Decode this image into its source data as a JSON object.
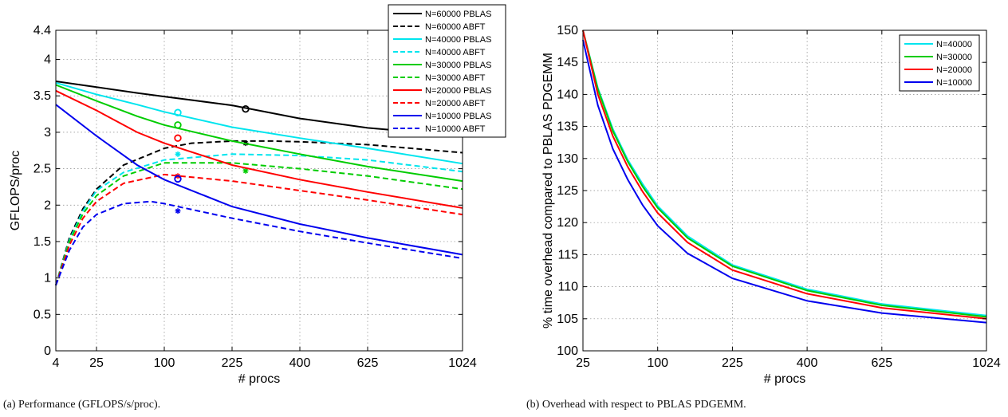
{
  "captions": {
    "a": "(a) Performance (GFLOPS/s/proc).",
    "b": "(b) Overhead with respect to PBLAS PDGEMM."
  },
  "chart_data": [
    {
      "type": "line",
      "id": "a",
      "xlabel": "# procs",
      "ylabel": "GFLOPS/proc",
      "x_scale": "sqrt",
      "xlim": [
        4,
        1024
      ],
      "ylim": [
        0,
        4.4
      ],
      "xticks": [
        4,
        25,
        100,
        225,
        400,
        625,
        1024
      ],
      "yticks": [
        0,
        0.5,
        1,
        1.5,
        2,
        2.5,
        3,
        3.5,
        4,
        4.4
      ],
      "ytick_labels": [
        "0",
        "0.5",
        "1",
        "1.5",
        "2",
        "2.5",
        "3",
        "3.5",
        "4",
        "4.4"
      ],
      "grid": true,
      "legend_position": "top-right",
      "series": [
        {
          "name": "N=60000 PBLAS",
          "color": "#000000",
          "dash": false,
          "points": [
            [
              4,
              3.7
            ],
            [
              25,
              3.62
            ],
            [
              64,
              3.54
            ],
            [
              100,
              3.49
            ],
            [
              225,
              3.37
            ],
            [
              400,
              3.19
            ],
            [
              625,
              3.06
            ],
            [
              1024,
              2.95
            ]
          ],
          "marker": {
            "type": "circle",
            "x": 256,
            "y": 3.32
          }
        },
        {
          "name": "N=60000 ABFT",
          "color": "#000000",
          "dash": true,
          "points": [
            [
              4,
              0.9
            ],
            [
              9,
              1.55
            ],
            [
              16,
              1.95
            ],
            [
              25,
              2.22
            ],
            [
              49,
              2.55
            ],
            [
              100,
              2.78
            ],
            [
              144,
              2.85
            ],
            [
              225,
              2.88
            ],
            [
              324,
              2.88
            ],
            [
              400,
              2.87
            ],
            [
              625,
              2.83
            ],
            [
              1024,
              2.72
            ]
          ],
          "marker": {
            "type": "star",
            "x": 256,
            "y": 2.85
          }
        },
        {
          "name": "N=40000 PBLAS",
          "color": "#00e5ee",
          "dash": false,
          "points": [
            [
              4,
              3.68
            ],
            [
              25,
              3.52
            ],
            [
              64,
              3.38
            ],
            [
              100,
              3.28
            ],
            [
              225,
              3.07
            ],
            [
              400,
              2.92
            ],
            [
              625,
              2.78
            ],
            [
              1024,
              2.57
            ]
          ],
          "marker": {
            "type": "circle",
            "x": 121,
            "y": 3.27
          }
        },
        {
          "name": "N=40000 ABFT",
          "color": "#00e5ee",
          "dash": true,
          "points": [
            [
              4,
              0.9
            ],
            [
              9,
              1.52
            ],
            [
              16,
              1.92
            ],
            [
              25,
              2.2
            ],
            [
              49,
              2.45
            ],
            [
              100,
              2.62
            ],
            [
              225,
              2.7
            ],
            [
              400,
              2.68
            ],
            [
              625,
              2.62
            ],
            [
              1024,
              2.46
            ]
          ],
          "marker": {
            "type": "star",
            "x": 121,
            "y": 2.7
          }
        },
        {
          "name": "N=30000 PBLAS",
          "color": "#00cc00",
          "dash": false,
          "points": [
            [
              4,
              3.65
            ],
            [
              25,
              3.43
            ],
            [
              64,
              3.22
            ],
            [
              100,
              3.1
            ],
            [
              225,
              2.88
            ],
            [
              400,
              2.7
            ],
            [
              625,
              2.53
            ],
            [
              1024,
              2.33
            ]
          ],
          "marker": {
            "type": "circle",
            "x": 121,
            "y": 3.1
          }
        },
        {
          "name": "N=30000 ABFT",
          "color": "#00cc00",
          "dash": true,
          "points": [
            [
              4,
              0.9
            ],
            [
              9,
              1.5
            ],
            [
              16,
              1.88
            ],
            [
              25,
              2.13
            ],
            [
              49,
              2.4
            ],
            [
              100,
              2.58
            ],
            [
              225,
              2.58
            ],
            [
              400,
              2.5
            ],
            [
              625,
              2.4
            ],
            [
              1024,
              2.22
            ]
          ],
          "marker": {
            "type": "star",
            "x": 256,
            "y": 2.47
          }
        },
        {
          "name": "N=20000 PBLAS",
          "color": "#ff0000",
          "dash": false,
          "points": [
            [
              4,
              3.57
            ],
            [
              25,
              3.3
            ],
            [
              64,
              3.0
            ],
            [
              100,
              2.85
            ],
            [
              225,
              2.55
            ],
            [
              400,
              2.35
            ],
            [
              625,
              2.18
            ],
            [
              1024,
              1.96
            ]
          ],
          "marker": {
            "type": "circle",
            "x": 121,
            "y": 2.92
          }
        },
        {
          "name": "N=20000 ABFT",
          "color": "#ff0000",
          "dash": true,
          "points": [
            [
              4,
              0.9
            ],
            [
              9,
              1.45
            ],
            [
              16,
              1.82
            ],
            [
              25,
              2.05
            ],
            [
              49,
              2.3
            ],
            [
              100,
              2.42
            ],
            [
              225,
              2.33
            ],
            [
              400,
              2.2
            ],
            [
              625,
              2.07
            ],
            [
              1024,
              1.87
            ]
          ],
          "marker": {
            "type": "star",
            "x": 121,
            "y": 2.4
          }
        },
        {
          "name": "N=10000 PBLAS",
          "color": "#0000ee",
          "dash": false,
          "points": [
            [
              4,
              3.38
            ],
            [
              25,
              2.95
            ],
            [
              64,
              2.55
            ],
            [
              100,
              2.35
            ],
            [
              225,
              1.98
            ],
            [
              400,
              1.74
            ],
            [
              625,
              1.55
            ],
            [
              1024,
              1.32
            ]
          ],
          "marker": {
            "type": "circle",
            "x": 121,
            "y": 2.36
          }
        },
        {
          "name": "N=10000 ABFT",
          "color": "#0000ee",
          "dash": true,
          "points": [
            [
              4,
              0.9
            ],
            [
              9,
              1.38
            ],
            [
              16,
              1.7
            ],
            [
              25,
              1.87
            ],
            [
              49,
              2.02
            ],
            [
              81,
              2.05
            ],
            [
              100,
              2.02
            ],
            [
              225,
              1.82
            ],
            [
              400,
              1.64
            ],
            [
              625,
              1.48
            ],
            [
              1024,
              1.27
            ]
          ],
          "marker": {
            "type": "star",
            "x": 121,
            "y": 1.92
          }
        }
      ]
    },
    {
      "type": "line",
      "id": "b",
      "xlabel": "# procs",
      "ylabel": "% time overhead compared to PBLAS PDGEMM",
      "x_scale": "sqrt",
      "xlim": [
        25,
        1024
      ],
      "ylim": [
        100,
        150
      ],
      "xticks": [
        25,
        100,
        225,
        400,
        625,
        1024
      ],
      "yticks": [
        100,
        105,
        110,
        115,
        120,
        125,
        130,
        135,
        140,
        145,
        150
      ],
      "ytick_labels": [
        "100",
        "105",
        "110",
        "115",
        "120",
        "125",
        "130",
        "135",
        "140",
        "145",
        "150"
      ],
      "grid": true,
      "legend_position": "top-right",
      "series": [
        {
          "name": "N=40000",
          "color": "#00e5ee",
          "points": [
            [
              25,
              150.0
            ],
            [
              36,
              141.0
            ],
            [
              49,
              134.6
            ],
            [
              64,
              129.8
            ],
            [
              81,
              126.0
            ],
            [
              100,
              122.6
            ],
            [
              144,
              117.9
            ],
            [
              225,
              113.4
            ],
            [
              400,
              109.6
            ],
            [
              625,
              107.3
            ],
            [
              1024,
              105.5
            ]
          ]
        },
        {
          "name": "N=30000",
          "color": "#00cc00",
          "points": [
            [
              25,
              150.0
            ],
            [
              36,
              140.8
            ],
            [
              49,
              134.3
            ],
            [
              64,
              129.5
            ],
            [
              81,
              125.6
            ],
            [
              100,
              122.3
            ],
            [
              144,
              117.6
            ],
            [
              225,
              113.2
            ],
            [
              400,
              109.4
            ],
            [
              625,
              107.1
            ],
            [
              1024,
              105.3
            ]
          ]
        },
        {
          "name": "N=20000",
          "color": "#ff0000",
          "points": [
            [
              25,
              150.0
            ],
            [
              36,
              140.0
            ],
            [
              49,
              133.5
            ],
            [
              64,
              128.7
            ],
            [
              81,
              124.8
            ],
            [
              100,
              121.5
            ],
            [
              144,
              116.9
            ],
            [
              225,
              112.6
            ],
            [
              400,
              108.9
            ],
            [
              625,
              106.7
            ],
            [
              1024,
              105.0
            ]
          ]
        },
        {
          "name": "N=10000",
          "color": "#0000ee",
          "points": [
            [
              25,
              148.5
            ],
            [
              36,
              138.3
            ],
            [
              49,
              131.5
            ],
            [
              64,
              126.7
            ],
            [
              81,
              122.7
            ],
            [
              100,
              119.5
            ],
            [
              144,
              115.2
            ],
            [
              225,
              111.3
            ],
            [
              400,
              107.8
            ],
            [
              625,
              105.9
            ],
            [
              1024,
              104.4
            ]
          ]
        }
      ]
    }
  ]
}
